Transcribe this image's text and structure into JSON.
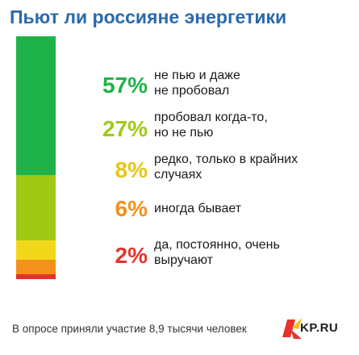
{
  "title": "Пьют ли россияне энергетики",
  "chart_data": {
    "type": "bar",
    "orientation": "stacked-vertical",
    "series": [
      {
        "percent_label": "57%",
        "value": 57,
        "label": "не пью и даже\nне пробовал",
        "color": "#1fb24a",
        "stripe_color": "#1fb24a"
      },
      {
        "percent_label": "27%",
        "value": 27,
        "label": "пробовал когда-то,\nно не пью",
        "color": "#a0c916",
        "stripe_color": "#a0c916"
      },
      {
        "percent_label": "8%",
        "value": 8,
        "label": "редко, только в крайних\nслучаях",
        "color": "#e9c515",
        "stripe_color": "#f2d81a"
      },
      {
        "percent_label": "6%",
        "value": 6,
        "label": "иногда бывает",
        "color": "#f0921a",
        "stripe_color": "#f2921b"
      },
      {
        "percent_label": "2%",
        "value": 2,
        "label": "да, постоянно, очень\nвыручают",
        "color": "#e6332a",
        "stripe_color": "#e4312a"
      }
    ]
  },
  "footer": "В опросе приняли участие 8,9 тысячи человек",
  "logo": {
    "text": "KP.RU",
    "icon": "kp-logo-icon",
    "colors": [
      "#e6332a",
      "#f6c213"
    ]
  }
}
